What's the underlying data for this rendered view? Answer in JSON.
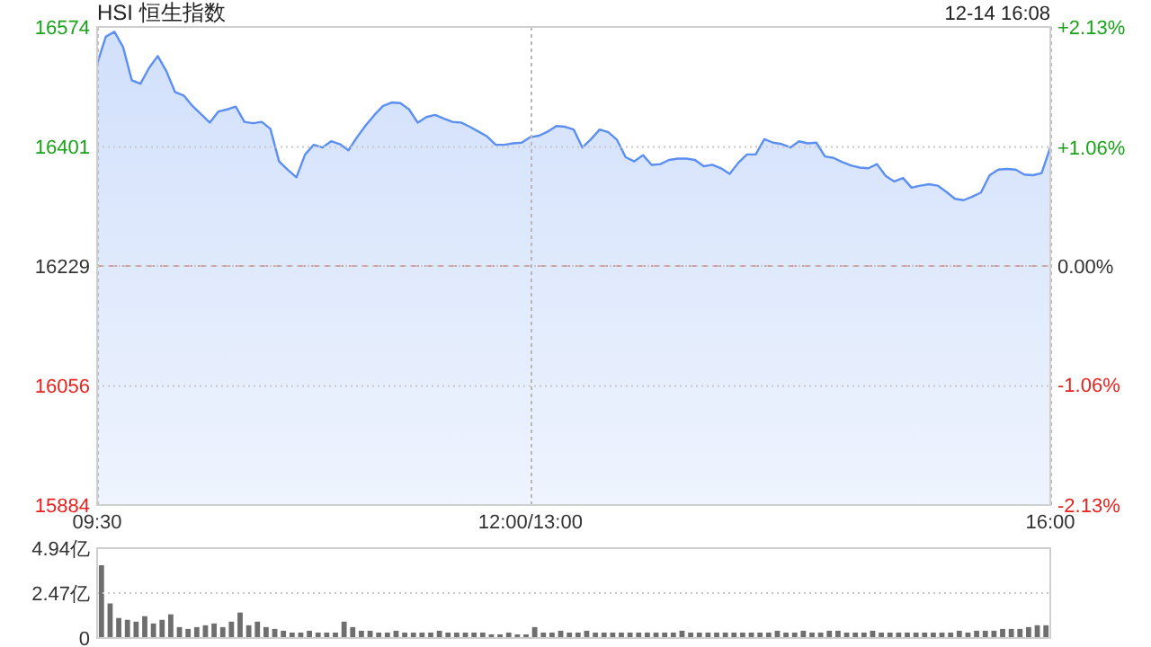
{
  "chart_data": [
    {
      "type": "area",
      "title": "HSI 恒生指数",
      "annotations": [
        "12-14 16:08"
      ],
      "categories": [
        "09:30",
        null,
        null,
        null,
        null,
        null,
        null,
        null,
        null,
        null,
        null,
        null,
        null,
        null,
        null,
        null,
        null,
        null,
        null,
        null,
        null,
        null,
        null,
        null,
        null,
        null,
        null,
        null,
        null,
        null,
        null,
        null,
        null,
        null,
        null,
        null,
        null,
        null,
        null,
        null,
        null,
        null,
        null,
        null,
        null,
        null,
        null,
        null,
        null,
        null,
        "12:00/13:00",
        null,
        null,
        null,
        null,
        null,
        null,
        null,
        null,
        null,
        null,
        null,
        null,
        null,
        null,
        null,
        null,
        null,
        null,
        null,
        null,
        null,
        null,
        null,
        null,
        null,
        null,
        null,
        null,
        null,
        null,
        null,
        null,
        null,
        null,
        null,
        null,
        null,
        null,
        null,
        null,
        null,
        null,
        null,
        null,
        null,
        null,
        null,
        null,
        null,
        null,
        null,
        null,
        null,
        null,
        null,
        null,
        null,
        null,
        null,
        "16:00"
      ],
      "series": [
        {
          "color": "#5b8ff2",
          "values": [
            16521,
            16560,
            16567,
            16545,
            16497,
            16492,
            16515,
            16532,
            16510,
            16480,
            16475,
            16460,
            16448,
            16436,
            16452,
            16455,
            16459,
            16437,
            16435,
            16437,
            16427,
            16380,
            16368,
            16357,
            16390,
            16404,
            16400,
            16409,
            16405,
            16396,
            16415,
            16432,
            16447,
            16460,
            16465,
            16464,
            16455,
            16436,
            16444,
            16447,
            16442,
            16437,
            16436,
            16430,
            16423,
            16416,
            16404,
            16404,
            16406,
            16407,
            16415,
            16417,
            16423,
            16431,
            16430,
            16426,
            16400,
            16412,
            16426,
            16422,
            16411,
            16386,
            16380,
            16389,
            16375,
            16376,
            16382,
            16384,
            16384,
            16382,
            16373,
            16375,
            16370,
            16362,
            16378,
            16390,
            16390,
            16412,
            16407,
            16405,
            16400,
            16409,
            16406,
            16407,
            16387,
            16385,
            16379,
            16374,
            16371,
            16370,
            16376,
            16359,
            16351,
            16356,
            16342,
            16345,
            16347,
            16345,
            16336,
            16326,
            16324,
            16329,
            16335,
            16360,
            16368,
            16369,
            16368,
            16361,
            16360,
            16363,
            16400
          ]
        }
      ],
      "ylim": [
        15884,
        16574
      ],
      "yticks": [
        15884,
        16056,
        16229,
        16401,
        16574
      ],
      "y2lim": [
        -2.13,
        2.13
      ],
      "y2ticks": [
        {
          "value": -2.13,
          "label": "-2.13%"
        },
        {
          "value": -1.06,
          "label": "-1.06%"
        },
        {
          "value": 0,
          "label": "0.00%"
        },
        {
          "value": 1.06,
          "label": "+1.06%"
        },
        {
          "value": 2.13,
          "label": "+2.13%"
        }
      ],
      "ref_lines": [
        {
          "axis": "y",
          "value": 16229,
          "color": "#e9a58a",
          "line_style": "dashed"
        }
      ],
      "grid": true
    },
    {
      "type": "bar",
      "categories": [
        null,
        null,
        null,
        null,
        null,
        null,
        null,
        null,
        null,
        null,
        null,
        null,
        null,
        null,
        null,
        null,
        null,
        null,
        null,
        null,
        null,
        null,
        null,
        null,
        null,
        null,
        null,
        null,
        null,
        null,
        null,
        null,
        null,
        null,
        null,
        null,
        null,
        null,
        null,
        null,
        null,
        null,
        null,
        null,
        null,
        null,
        null,
        null,
        null,
        null,
        null,
        null,
        null,
        null,
        null,
        null,
        null,
        null,
        null,
        null,
        null,
        null,
        null,
        null,
        null,
        null,
        null,
        null,
        null,
        null,
        null,
        null,
        null,
        null,
        null,
        null,
        null,
        null,
        null,
        null,
        null,
        null,
        null,
        null,
        null,
        null,
        null,
        null,
        null,
        null,
        null,
        null,
        null,
        null,
        null,
        null,
        null,
        null,
        null,
        null,
        null,
        null,
        null,
        null,
        null,
        null,
        null,
        null,
        null,
        null
      ],
      "values": [
        4.0,
        1.9,
        1.1,
        1.0,
        0.9,
        1.2,
        0.8,
        1.0,
        1.3,
        0.6,
        0.5,
        0.6,
        0.7,
        0.8,
        0.6,
        0.9,
        1.4,
        0.7,
        0.9,
        0.6,
        0.5,
        0.4,
        0.3,
        0.3,
        0.4,
        0.3,
        0.3,
        0.3,
        0.9,
        0.6,
        0.4,
        0.4,
        0.3,
        0.3,
        0.4,
        0.3,
        0.3,
        0.3,
        0.3,
        0.4,
        0.3,
        0.3,
        0.3,
        0.3,
        0.3,
        0.2,
        0.2,
        0.3,
        0.2,
        0.2,
        0.6,
        0.3,
        0.3,
        0.4,
        0.3,
        0.3,
        0.4,
        0.3,
        0.3,
        0.3,
        0.3,
        0.3,
        0.3,
        0.3,
        0.3,
        0.3,
        0.3,
        0.4,
        0.3,
        0.3,
        0.3,
        0.3,
        0.3,
        0.3,
        0.3,
        0.3,
        0.3,
        0.3,
        0.4,
        0.3,
        0.3,
        0.4,
        0.3,
        0.3,
        0.4,
        0.4,
        0.3,
        0.3,
        0.3,
        0.4,
        0.3,
        0.3,
        0.3,
        0.3,
        0.3,
        0.3,
        0.3,
        0.3,
        0.3,
        0.4,
        0.3,
        0.4,
        0.4,
        0.4,
        0.5,
        0.5,
        0.5,
        0.6,
        0.7,
        0.7
      ],
      "color": "#6e6e6e",
      "ylim": [
        0,
        4.94
      ],
      "yticks": [
        0,
        {
          "value": 2.47,
          "label": "2.47亿"
        },
        {
          "value": 4.94,
          "label": "4.94亿"
        }
      ],
      "tick_labels": "y",
      "grid": "y"
    }
  ]
}
